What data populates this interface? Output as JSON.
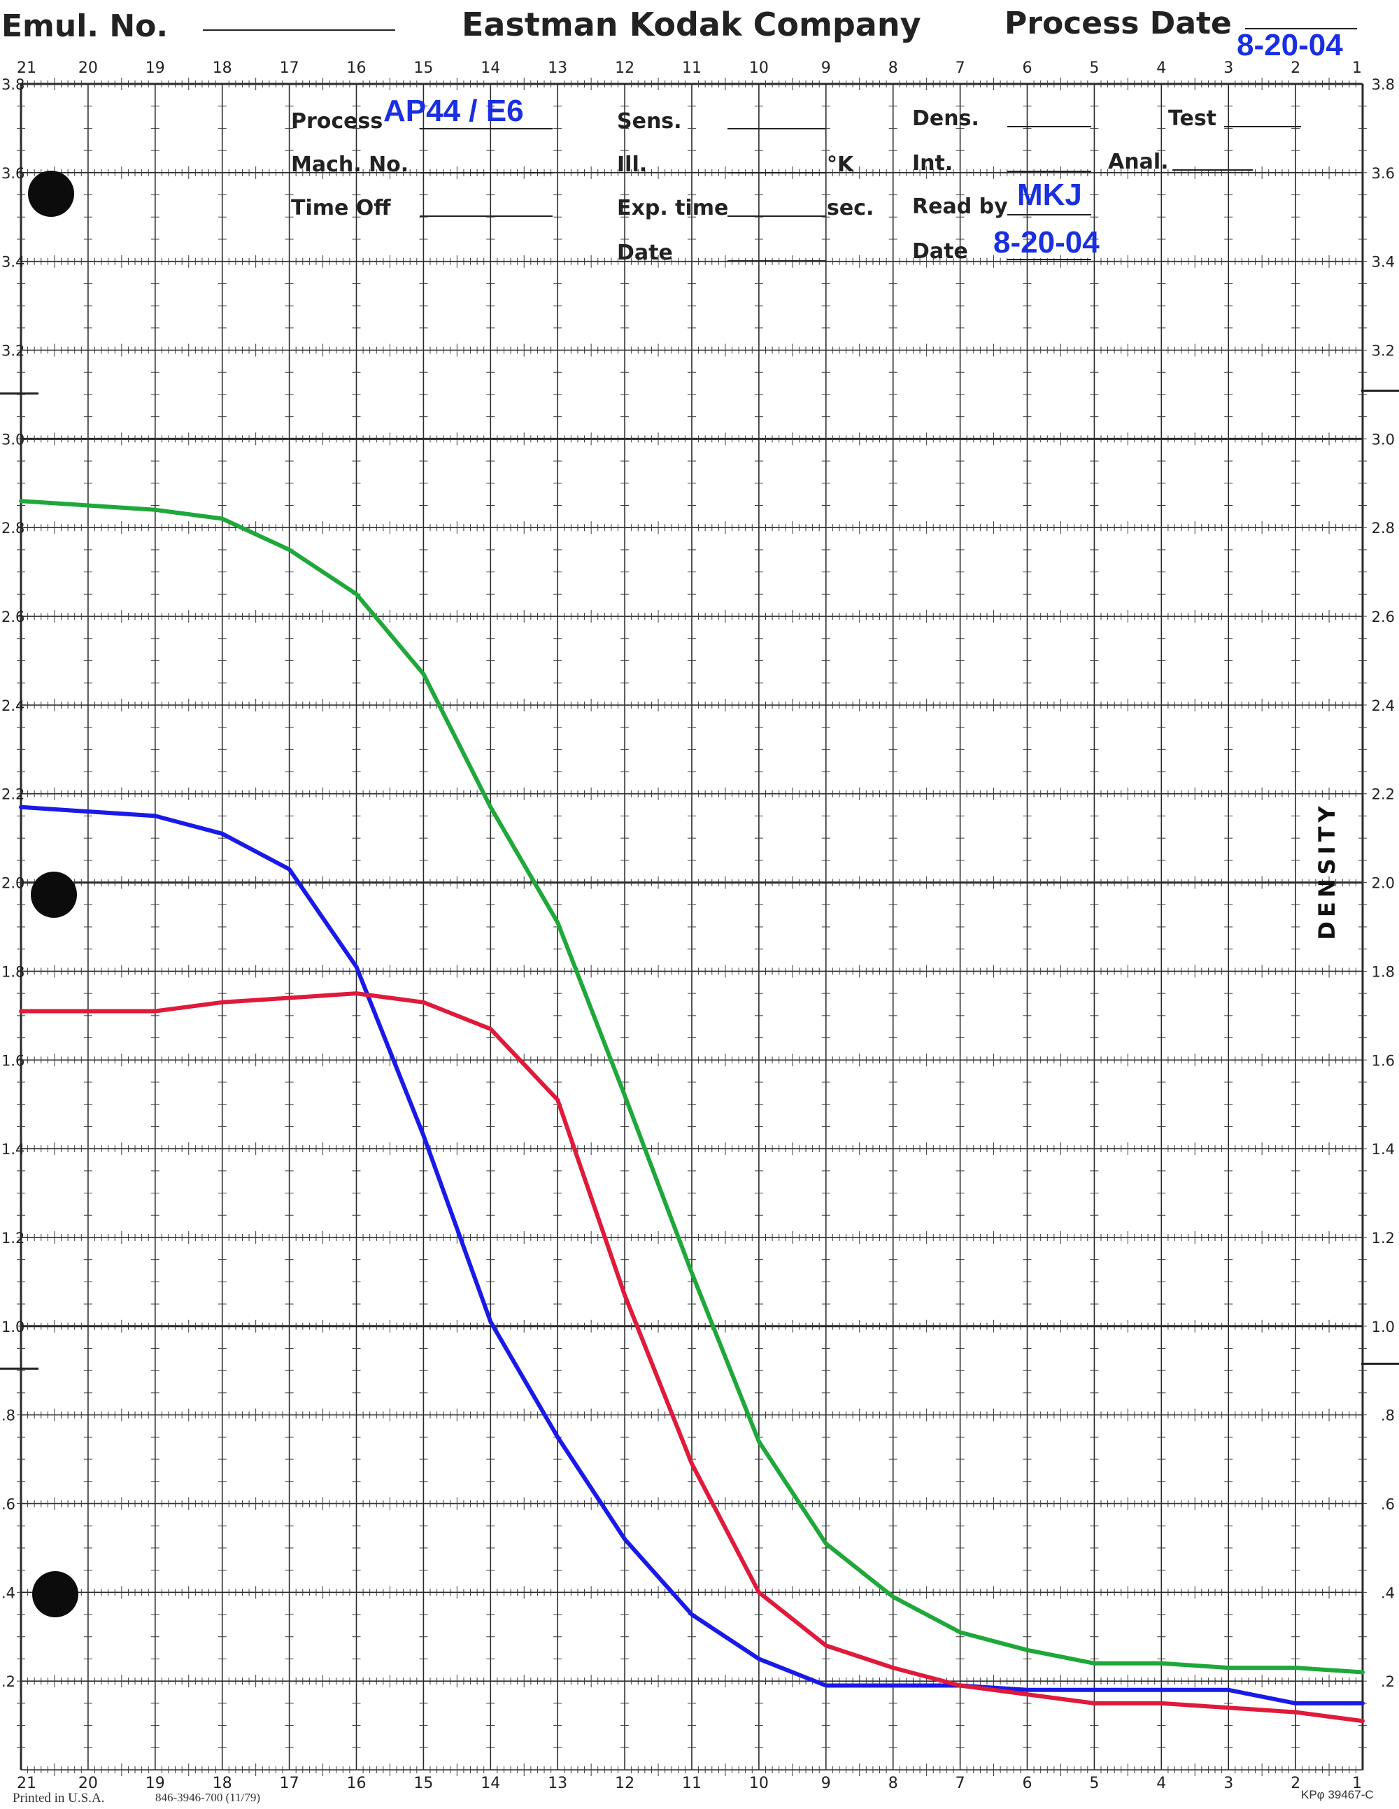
{
  "header": {
    "emul_label": "Emul. No.",
    "company": "Eastman Kodak Company",
    "process_date_label": "Process Date",
    "process_date_value": "8-20-04"
  },
  "form": {
    "process_label": "Process",
    "process_value": "AP44 / E6",
    "mach_label": "Mach. No.",
    "time_off_label": "Time Off",
    "sens_label": "Sens.",
    "ill_label": "Ill.",
    "k_label": "°K",
    "exp_label": "Exp. time",
    "sec_label": "sec.",
    "date_label_left": "Date",
    "dens_label": "Dens.",
    "int_label": "Int.",
    "read_label": "Read by",
    "read_value": "MKJ",
    "date_label_right": "Date",
    "date_value": "8-20-04",
    "test_label": "Test",
    "anal_label": "Anal."
  },
  "footer": {
    "printed": "Printed in U.S.A.",
    "form_number": "846-3946-700  (11/79)",
    "code": "KPφ  39467-C"
  },
  "chart_data": {
    "type": "line",
    "title": "",
    "xlabel": "",
    "ylabel": "DENSITY",
    "xlim": [
      21,
      1
    ],
    "ylim": [
      0,
      3.8
    ],
    "grid": true,
    "x_ticks": [
      "21",
      "20",
      "19",
      "18",
      "17",
      "16",
      "15",
      "14",
      "13",
      "12",
      "11",
      "10",
      "9",
      "8",
      "7",
      "6",
      "5",
      "4",
      "3",
      "2",
      "1"
    ],
    "y_ticks_left": [
      "3.8",
      "3.6",
      "3.4",
      "3.2",
      "3.0",
      "2.8",
      "2.6",
      "2.4",
      "2.2",
      "2.0",
      "1.8",
      "1.6",
      "1.4",
      "1.2",
      "1.0",
      ".8",
      ".6",
      ".4",
      ".2"
    ],
    "y_ticks_right": [
      "3.8",
      "3.6",
      "3.4",
      "3.2",
      "3.0",
      "2.8",
      "2.6",
      "2.4",
      "2.2",
      "2.0",
      "1.8",
      "1.6",
      "1.4",
      "1.2",
      "1.0",
      ".8",
      ".6",
      ".4",
      ".2"
    ],
    "x": [
      21,
      20,
      19,
      18,
      17,
      16,
      15,
      14,
      13,
      12,
      11,
      10,
      9,
      8,
      7,
      6,
      5,
      4,
      3,
      2,
      1
    ],
    "series": [
      {
        "color": "#1fa83a",
        "values": [
          2.86,
          2.85,
          2.84,
          2.82,
          2.75,
          2.65,
          2.47,
          2.17,
          1.91,
          1.52,
          1.12,
          0.74,
          0.51,
          0.39,
          0.31,
          0.27,
          0.24,
          0.24,
          0.23,
          0.23,
          0.22
        ]
      },
      {
        "color": "#1a1ae8",
        "values": [
          2.17,
          2.16,
          2.15,
          2.11,
          2.03,
          1.81,
          1.43,
          1.01,
          0.75,
          0.52,
          0.35,
          0.25,
          0.19,
          0.19,
          0.19,
          0.18,
          0.18,
          0.18,
          0.18,
          0.15,
          0.15
        ]
      },
      {
        "color": "#e01a3a",
        "values": [
          1.71,
          1.71,
          1.71,
          1.73,
          1.74,
          1.75,
          1.73,
          1.67,
          1.51,
          1.07,
          0.69,
          0.4,
          0.28,
          0.23,
          0.19,
          0.17,
          0.15,
          0.15,
          0.14,
          0.13,
          0.11
        ]
      }
    ]
  }
}
